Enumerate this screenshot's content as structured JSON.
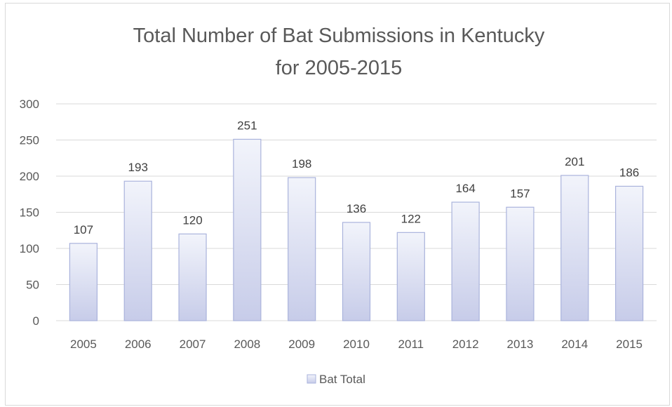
{
  "chart_data": {
    "type": "bar",
    "title_lines": [
      "Total Number of Bat Submissions in Kentucky",
      "for 2005-2015"
    ],
    "categories": [
      "2005",
      "2006",
      "2007",
      "2008",
      "2009",
      "2010",
      "2011",
      "2012",
      "2013",
      "2014",
      "2015"
    ],
    "series": [
      {
        "name": "Bat Total",
        "values": [
          107,
          193,
          120,
          251,
          198,
          136,
          122,
          164,
          157,
          201,
          186
        ]
      }
    ],
    "ylim": [
      0,
      300
    ],
    "yticks": [
      0,
      50,
      100,
      150,
      200,
      250,
      300
    ],
    "grid": true,
    "legend_position": "bottom",
    "data_labels": true,
    "colors": {
      "bar_fill_top": "#f2f4fb",
      "bar_fill_bottom": "#c7cce9",
      "bar_stroke": "#aab3dc",
      "grid": "#d9d9d9",
      "text": "#595959"
    }
  }
}
